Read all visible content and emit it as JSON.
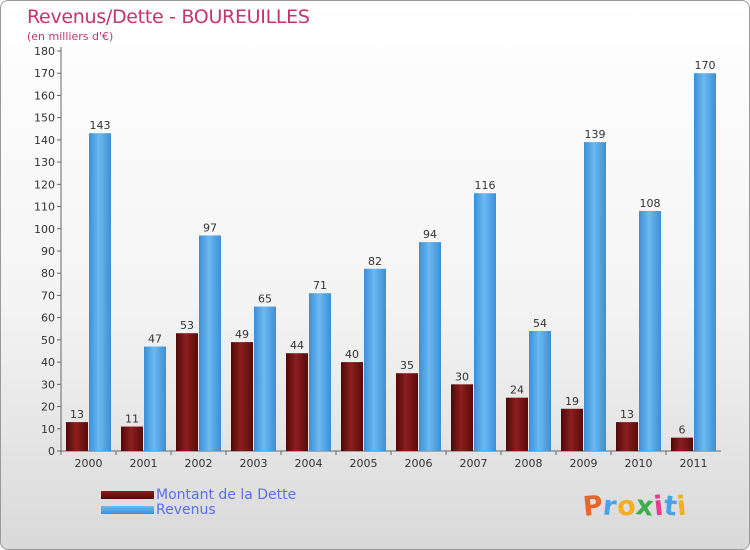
{
  "title": "Revenus/Dette - BOUREUILLES",
  "subtitle": "(en milliers d'€)",
  "colors": {
    "dette": "#6e0d0d",
    "revenus": "#4aa2e6",
    "title": "#c3356b",
    "legend_text": "#5a6ef0"
  },
  "legend": [
    {
      "label": "Montant de la Dette",
      "color": "#6e0d0d"
    },
    {
      "label": "Revenus",
      "color": "#4aa2e6"
    }
  ],
  "logo": {
    "text": "Proxiti"
  },
  "chart_data": {
    "type": "bar",
    "title": "Revenus/Dette - BOUREUILLES",
    "subtitle": "(en milliers d'€)",
    "categories": [
      "2000",
      "2001",
      "2002",
      "2003",
      "2004",
      "2005",
      "2006",
      "2007",
      "2008",
      "2009",
      "2010",
      "2011"
    ],
    "series": [
      {
        "name": "Montant de la Dette",
        "values": [
          13,
          11,
          53,
          49,
          44,
          40,
          35,
          30,
          24,
          19,
          13,
          6
        ]
      },
      {
        "name": "Revenus",
        "values": [
          143,
          47,
          97,
          65,
          71,
          82,
          94,
          116,
          54,
          139,
          108,
          170
        ]
      }
    ],
    "ylim": [
      0,
      180
    ],
    "yticks": [
      0,
      10,
      20,
      30,
      40,
      50,
      60,
      70,
      80,
      90,
      100,
      110,
      120,
      130,
      140,
      150,
      160,
      170,
      180
    ],
    "grid": false,
    "legend_position": "bottom-left"
  }
}
